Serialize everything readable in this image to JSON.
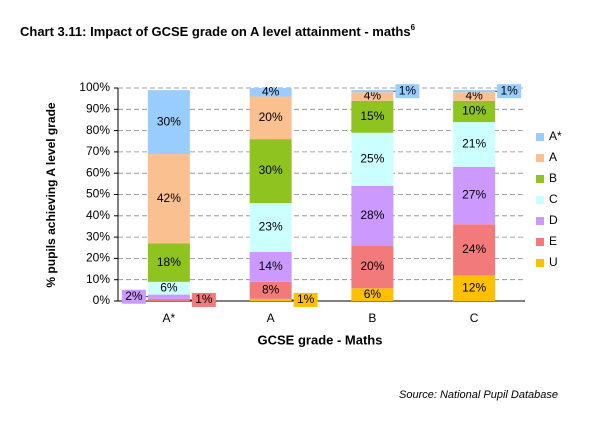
{
  "chart_data": {
    "type": "stacked_bar",
    "title": "Chart 3.11: Impact of GCSE grade on A level attainment - maths",
    "title_superscript": "6",
    "x_label": "GCSE grade - Maths",
    "y_label": "% pupils achieving A level grade",
    "source": "Source: National Pupil Database",
    "categories": [
      "A*",
      "A",
      "B",
      "C"
    ],
    "series": [
      {
        "name": "U",
        "color": "#ffc000",
        "values": [
          null,
          1,
          6,
          12
        ],
        "value_labels": [
          null,
          "1%",
          "6%",
          "12%"
        ]
      },
      {
        "name": "E",
        "color": "#f37a7a",
        "values": [
          1,
          8,
          20,
          24
        ],
        "value_labels": [
          "1%",
          "8%",
          "20%",
          "24%"
        ]
      },
      {
        "name": "D",
        "color": "#cc99ff",
        "values": [
          2,
          14,
          28,
          27
        ],
        "value_labels": [
          "2%",
          "14%",
          "28%",
          "27%"
        ]
      },
      {
        "name": "C",
        "color": "#ccffff",
        "values": [
          6,
          23,
          25,
          21
        ],
        "value_labels": [
          "6%",
          "23%",
          "25%",
          "21%"
        ]
      },
      {
        "name": "B",
        "color": "#8fc31f",
        "values": [
          18,
          30,
          15,
          10
        ],
        "value_labels": [
          "18%",
          "30%",
          "15%",
          "10%"
        ]
      },
      {
        "name": "A",
        "color": "#fac090",
        "values": [
          42,
          20,
          4,
          4
        ],
        "value_labels": [
          "42%",
          "20%",
          "4%",
          "4%"
        ]
      },
      {
        "name": "A*",
        "color": "#99ccff",
        "values": [
          30,
          4,
          1,
          1
        ],
        "value_labels": [
          "30%",
          "4%",
          "1%",
          "1%"
        ]
      }
    ],
    "ylim": [
      0,
      100
    ],
    "yticks": [
      {
        "value": 0,
        "label": "0%"
      },
      {
        "value": 10,
        "label": "10%"
      },
      {
        "value": 20,
        "label": "20%"
      },
      {
        "value": 30,
        "label": "30%"
      },
      {
        "value": 40,
        "label": "40%"
      },
      {
        "value": 50,
        "label": "50%"
      },
      {
        "value": 60,
        "label": "60%"
      },
      {
        "value": 70,
        "label": "70%"
      },
      {
        "value": 80,
        "label": "80%"
      },
      {
        "value": 90,
        "label": "90%"
      },
      {
        "value": 100,
        "label": "100%"
      }
    ],
    "grid": true
  }
}
